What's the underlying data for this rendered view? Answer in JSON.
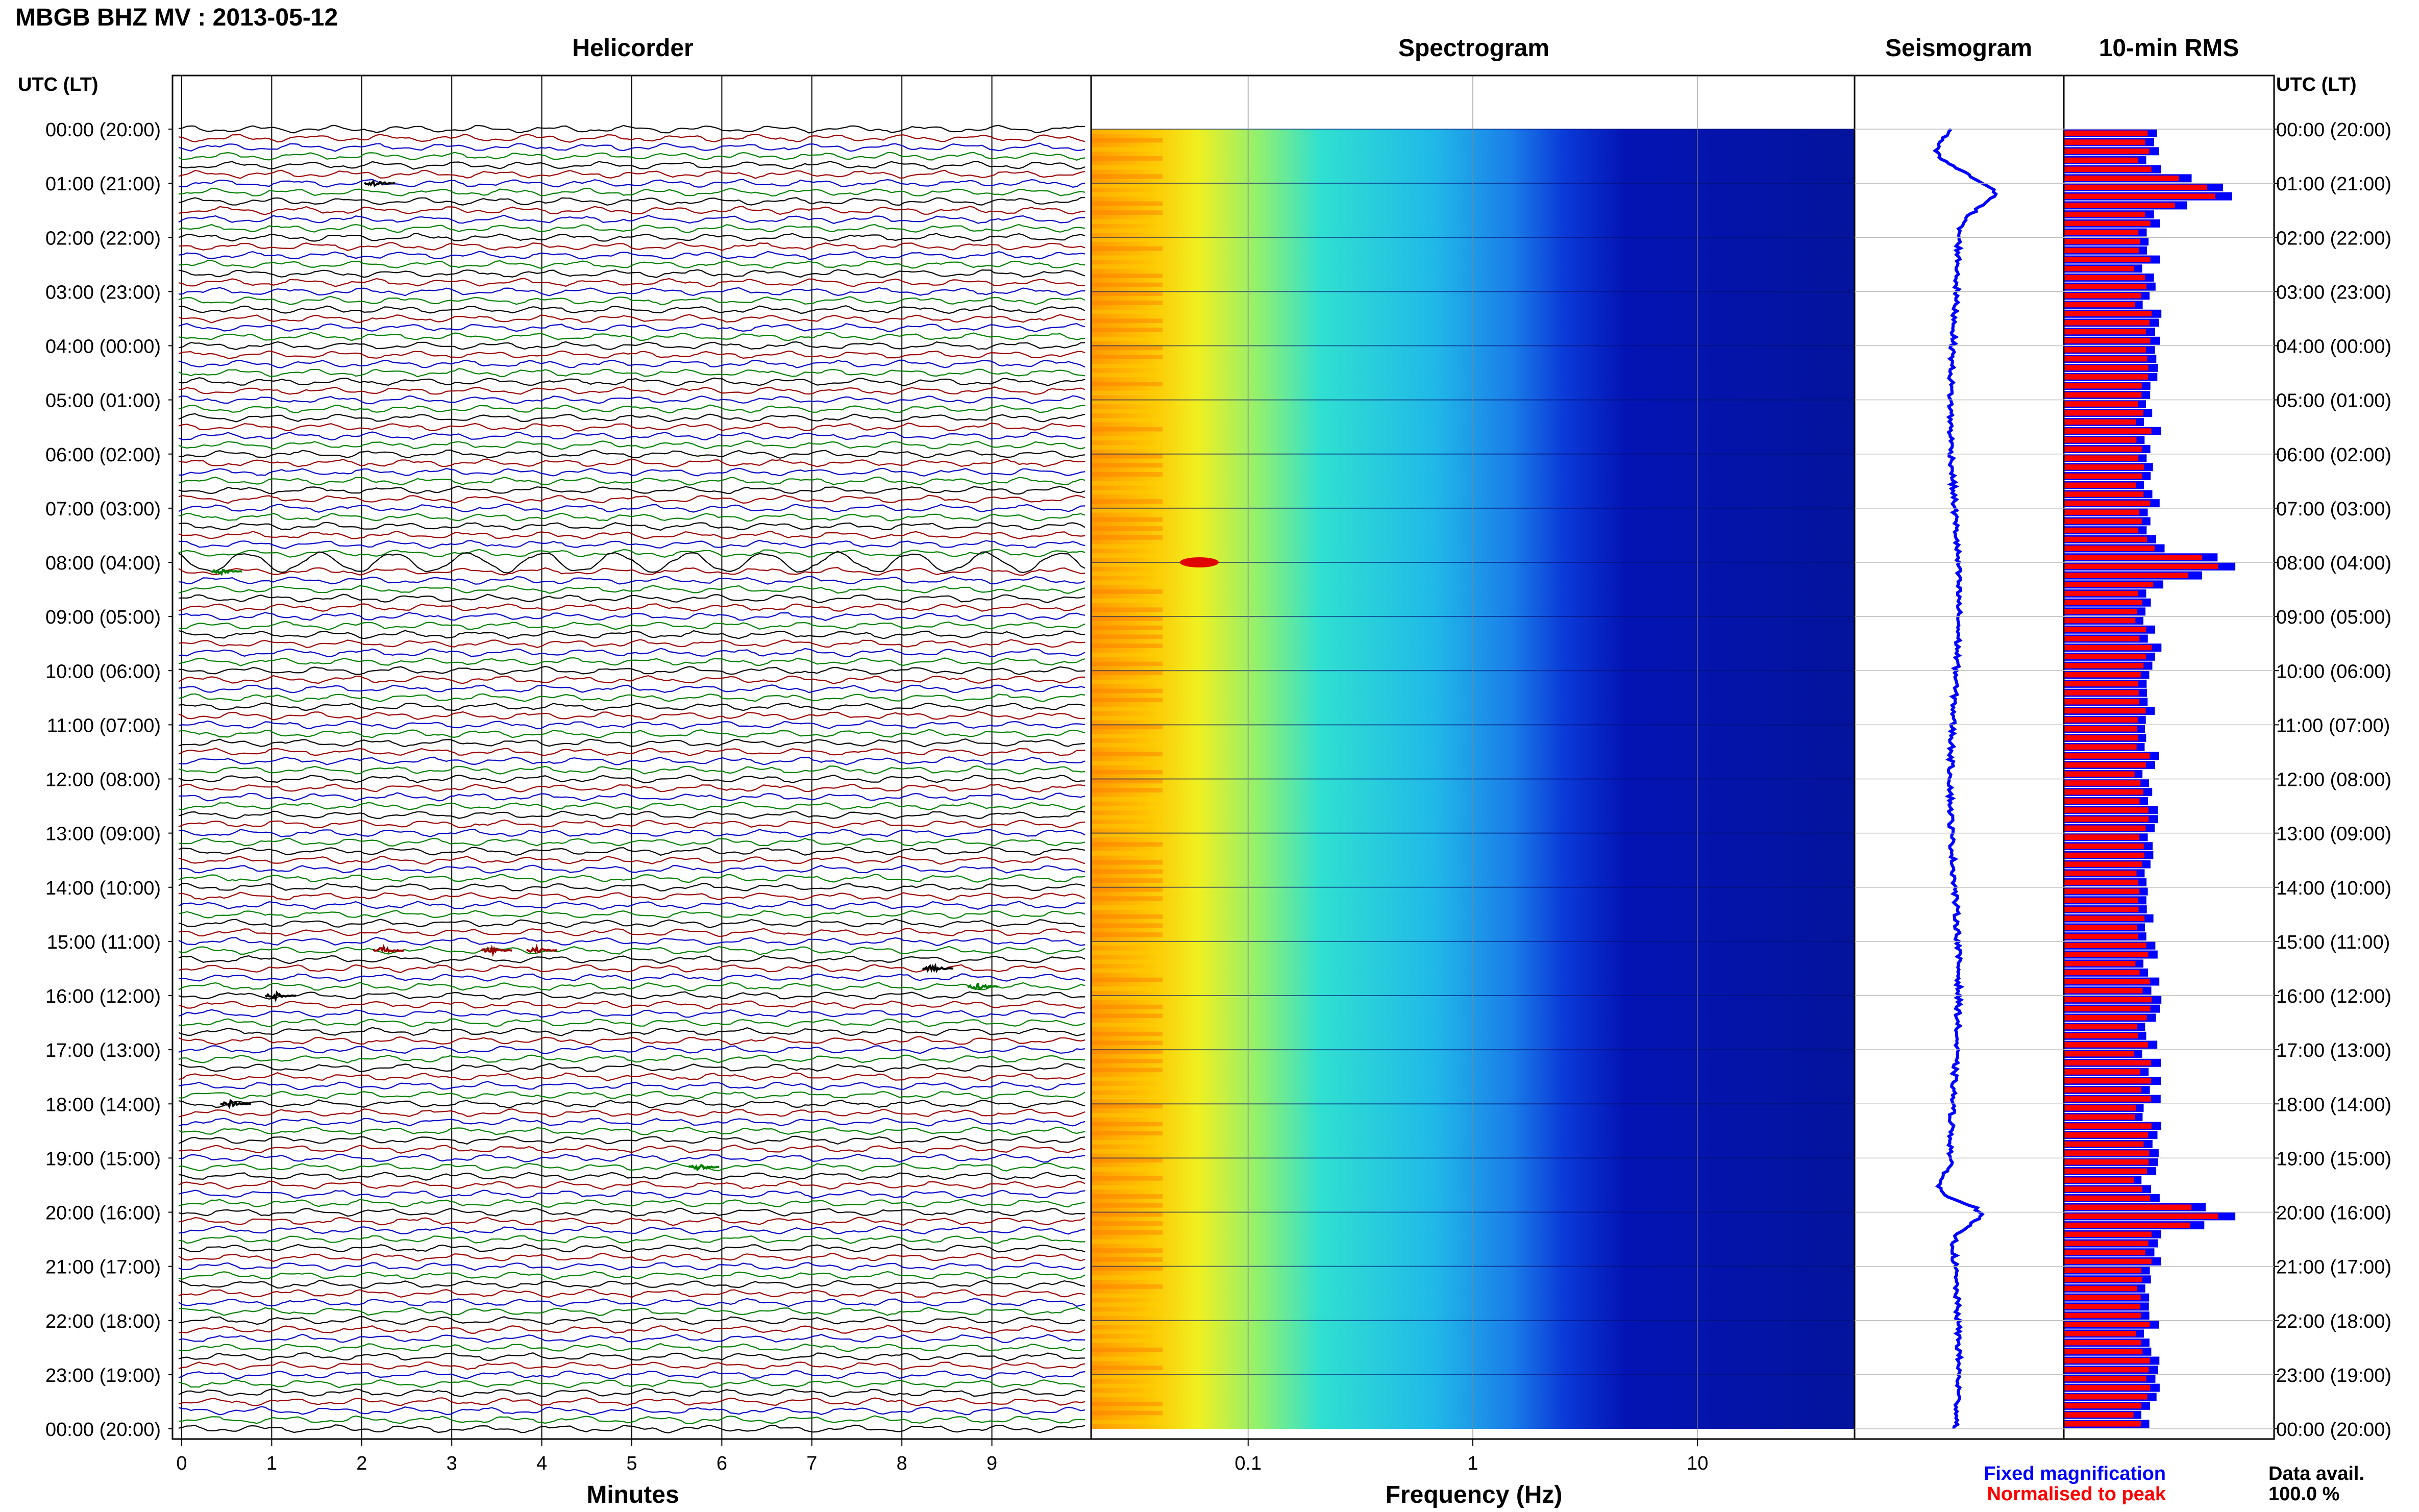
{
  "title": "MBGB BHZ MV : 2013-05-12",
  "colors": {
    "trace_cycle": [
      "#000000",
      "#9b0000",
      "#0000c8",
      "#008000"
    ],
    "rms_fixed": "#0000ff",
    "rms_normalised": "#ff0000",
    "seismogram": "#0000ff"
  },
  "chart_data": [
    {
      "type": "line",
      "title": "Helicorder",
      "xlabel": "Minutes",
      "ylabel_left": "UTC (LT)",
      "xlim": [
        0,
        10
      ],
      "x_ticks": [
        "0",
        "1",
        "2",
        "3",
        "4",
        "5",
        "6",
        "7",
        "8",
        "9"
      ],
      "y_time_labels": [
        "00:00 (20:00)",
        "01:00 (21:00)",
        "02:00 (22:00)",
        "03:00 (23:00)",
        "04:00 (00:00)",
        "05:00 (01:00)",
        "06:00 (02:00)",
        "07:00 (03:00)",
        "08:00 (04:00)",
        "09:00 (05:00)",
        "10:00 (06:00)",
        "11:00 (07:00)",
        "12:00 (08:00)",
        "13:00 (09:00)",
        "14:00 (10:00)",
        "15:00 (11:00)",
        "16:00 (12:00)",
        "17:00 (13:00)",
        "18:00 (14:00)",
        "19:00 (15:00)",
        "20:00 (16:00)",
        "21:00 (17:00)",
        "22:00 (18:00)",
        "23:00 (19:00)",
        "00:00 (20:00)"
      ],
      "trace_minutes": 10,
      "trace_count": 144,
      "events": [
        {
          "row": 6,
          "minute": 2.2,
          "color": "#000000"
        },
        {
          "row": 49,
          "minute": 0.5,
          "color": "#008000"
        },
        {
          "row": 91,
          "minute": 2.3,
          "color": "#9b0000"
        },
        {
          "row": 91,
          "minute": 3.5,
          "color": "#9b0000"
        },
        {
          "row": 91,
          "minute": 4.0,
          "color": "#9b0000"
        },
        {
          "row": 93,
          "minute": 8.4,
          "color": "#000000"
        },
        {
          "row": 95,
          "minute": 8.9,
          "color": "#008000"
        },
        {
          "row": 96,
          "minute": 1.1,
          "color": "#000000"
        },
        {
          "row": 108,
          "minute": 0.6,
          "color": "#000000"
        },
        {
          "row": 115,
          "minute": 5.8,
          "color": "#008000"
        }
      ]
    },
    {
      "type": "heatmap",
      "title": "Spectrogram",
      "xlabel": "Frequency (Hz)",
      "xscale": "log",
      "xlim": [
        0.02,
        50
      ],
      "x_ticks": [
        "0.1",
        "1",
        "10"
      ],
      "rows": 144
    },
    {
      "type": "line",
      "title": "Seismogram",
      "description_color": "#0000ff",
      "y_hours": [
        0,
        24
      ]
    },
    {
      "type": "bar",
      "title": "10-min RMS",
      "orientation": "horizontal",
      "bins": 144,
      "peaks_hours": [
        1.1,
        8.0,
        20.0
      ],
      "legend": [
        "Fixed magnification",
        "Normalised to peak"
      ],
      "ylabel_right": "UTC (LT)",
      "data_avail_label": "Data avail.",
      "data_avail_value": "100.0 %"
    }
  ]
}
